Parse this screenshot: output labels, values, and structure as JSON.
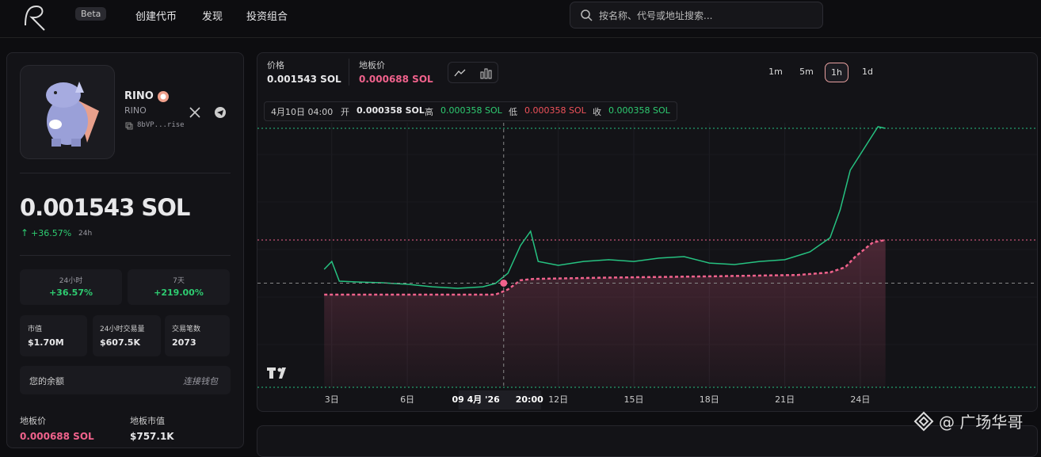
{
  "header": {
    "badge": "Beta",
    "nav": [
      "创建代币",
      "发现",
      "投资组合"
    ],
    "search_placeholder": "按名称、代号或地址搜索..."
  },
  "token": {
    "name": "RINO",
    "symbol": "RINO",
    "address": "8bVP...rise",
    "price": "0.001543 SOL",
    "change": "+36.57%",
    "change_period": "24h"
  },
  "stats": [
    {
      "label": "24小时",
      "value": "+36.57%"
    },
    {
      "label": "7天",
      "value": "+219.00%"
    }
  ],
  "metrics": [
    {
      "label": "市值",
      "value": "$1.70M"
    },
    {
      "label": "24小时交易量",
      "value": "$607.5K"
    },
    {
      "label": "交易笔数",
      "value": "2073"
    }
  ],
  "balance": {
    "label": "您的余额",
    "action": "连接钱包"
  },
  "floor": [
    {
      "label": "地板价",
      "value": "0.000688 SOL"
    },
    {
      "label": "地板市值",
      "value": "$757.1K"
    }
  ],
  "chart_header": {
    "price": "0.001543 SOL",
    "floor": "0.000688 SOL",
    "intervals": [
      "1m",
      "5m",
      "1h",
      "1d"
    ],
    "active_interval": 2
  },
  "ohlc": {
    "date": "4月10日 04:00",
    "open_label": "开",
    "open": "0.000358 SOL",
    "high_label": "高",
    "high": "0.000358 SOL",
    "low_label": "低",
    "low": "0.000358 SOL",
    "close_label": "收",
    "close": "0.000358 SOL"
  },
  "watermark": "@ 广场华哥",
  "chart_data": {
    "type": "line",
    "xlim": [
      2,
      28
    ],
    "ylim": [
      0,
      0.0016
    ],
    "xticks": [
      {
        "value": 3,
        "label": "3日"
      },
      {
        "value": 6,
        "label": "6日"
      },
      {
        "value": 12,
        "label": "12日"
      },
      {
        "value": 15,
        "label": "15日"
      },
      {
        "value": 18,
        "label": "18日"
      },
      {
        "value": 21,
        "label": "21日"
      },
      {
        "value": 24,
        "label": "24日"
      }
    ],
    "grid": true,
    "series": [
      {
        "name": "价格",
        "color": "#26c281",
        "x": [
          2.7,
          3.0,
          3.3,
          4,
          5,
          6,
          7,
          8,
          9,
          9.5,
          10,
          10.5,
          10.9,
          11.2,
          12,
          13,
          14,
          15,
          16,
          17,
          18,
          19,
          20,
          21,
          22,
          22.8,
          23.2,
          23.6,
          24,
          24.4,
          24.7,
          25
        ],
        "values": [
          0.000464,
          0.000524,
          0.000373,
          0.000367,
          0.000361,
          0.000349,
          0.00033,
          0.000318,
          0.00033,
          0.000355,
          0.000434,
          0.000646,
          0.000755,
          0.000524,
          0.000494,
          0.000524,
          0.000537,
          0.000524,
          0.000549,
          0.000561,
          0.000512,
          0.0005,
          0.000524,
          0.000537,
          0.000597,
          0.000706,
          0.000919,
          0.001222,
          0.001343,
          0.001464,
          0.001555,
          0.001543
        ]
      },
      {
        "name": "地板价",
        "color": "#f0628c",
        "x": [
          2.7,
          9.5,
          10,
          10.5,
          11,
          14,
          18,
          21.5,
          22.8,
          23.4,
          23.8,
          24.5,
          25
        ],
        "values": [
          0.00027,
          0.00027,
          0.00031,
          0.00038,
          0.00039,
          0.0004,
          0.00041,
          0.00042,
          0.00044,
          0.00048,
          0.00056,
          0.00067,
          0.000688
        ]
      }
    ],
    "hlines": [
      {
        "value": 0.001543,
        "color": "#26c281"
      },
      {
        "value": 0.000688,
        "color": "#f0628c"
      }
    ],
    "crosshair": {
      "x": 9.83,
      "y": 0.000358,
      "date_label": "09 4月 '26",
      "time_label": "20:00"
    }
  }
}
